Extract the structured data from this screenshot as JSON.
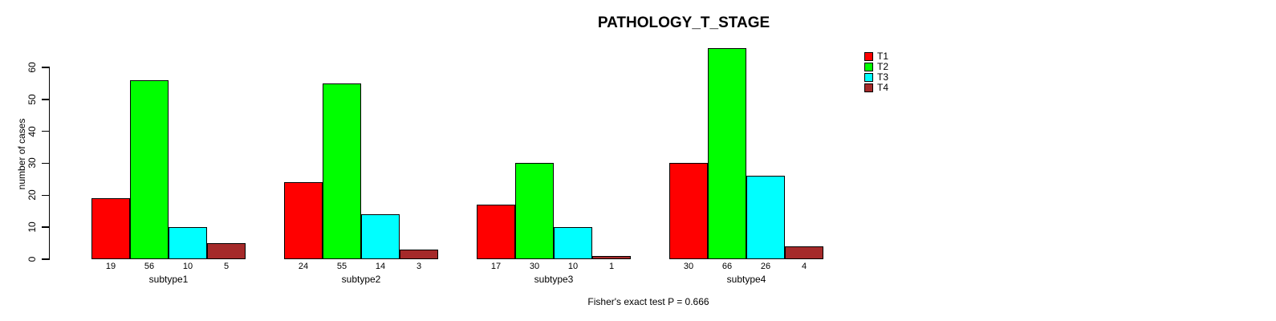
{
  "chart_data": {
    "type": "bar",
    "title": "PATHOLOGY_T_STAGE",
    "xlabel": "",
    "ylabel": "number of cases",
    "ylim": [
      0,
      60
    ],
    "yticks": [
      0,
      10,
      20,
      30,
      40,
      50,
      60
    ],
    "grid": false,
    "legend_position": "top-right",
    "categories": [
      "subtype1",
      "subtype2",
      "subtype3",
      "subtype4"
    ],
    "series": [
      {
        "name": "T1",
        "color": "#FF0000",
        "values": [
          19,
          24,
          17,
          30
        ]
      },
      {
        "name": "T2",
        "color": "#00FF00",
        "values": [
          56,
          55,
          30,
          66
        ]
      },
      {
        "name": "T3",
        "color": "#00FFFF",
        "values": [
          10,
          14,
          10,
          26
        ]
      },
      {
        "name": "T4",
        "color": "#A52A2A",
        "values": [
          5,
          3,
          1,
          4
        ]
      }
    ],
    "bar_value_labels_shown": true,
    "footnote": "Fisher's exact test P = 0.666"
  }
}
